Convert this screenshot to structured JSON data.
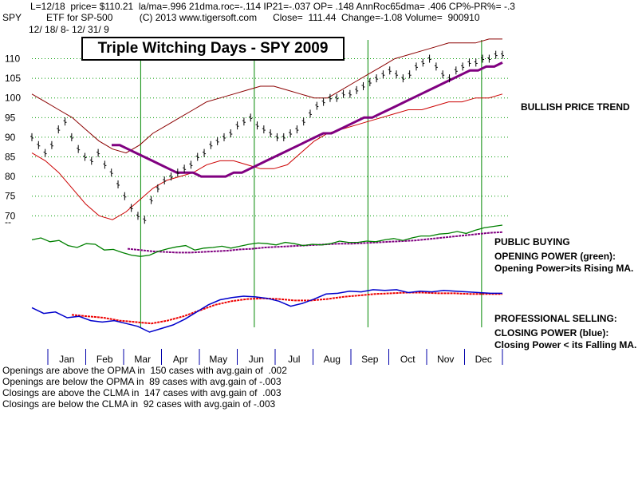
{
  "header": {
    "line1": "L=12/18  price= $110.21  la/ma=.996 21dma.roc=-.114 IP21=-.037 OP= .148 AnnRoc65dma= .406 CP%-PR%= -.3",
    "symbol": "SPY",
    "line2": "ETF for SP-500          (C) 2013 www.tigersoft.com      Close=  111.44  Change=-1.08 Volume=  900910",
    "date_range": "12/ 18/ 8- 12/ 31/ 9",
    "y_extra": "--"
  },
  "chart_data": {
    "type": "line",
    "title": "Triple Witching Days - SPY 2009",
    "ylim": [
      66,
      116
    ],
    "y_ticks": [
      70,
      75,
      80,
      85,
      90,
      95,
      100,
      105,
      110
    ],
    "x_labels": [
      "Jan",
      "Feb",
      "Mar",
      "Apr",
      "May",
      "Jun",
      "Jul",
      "Aug",
      "Sep",
      "Oct",
      "Nov",
      "Dec"
    ],
    "triple_witching_months": [
      "Mar",
      "Jun",
      "Sep",
      "Dec"
    ],
    "price": [
      90,
      88,
      86,
      88,
      92,
      94,
      90,
      87,
      85,
      84,
      86,
      83,
      81,
      78,
      75,
      72,
      70,
      69,
      74,
      77,
      79,
      80,
      81,
      82,
      83,
      85,
      86,
      88,
      89,
      90,
      91,
      93,
      94,
      95,
      93,
      92,
      91,
      90,
      90,
      91,
      92,
      94,
      96,
      98,
      99,
      100,
      100,
      101,
      101,
      102,
      103,
      104,
      105,
      106,
      107,
      106,
      105,
      106,
      108,
      109,
      110,
      108,
      106,
      105,
      107,
      108,
      109,
      109,
      110,
      110,
      111,
      111
    ],
    "ma": [
      88,
      88,
      87,
      86,
      85,
      84,
      83,
      82,
      81,
      81,
      81,
      80,
      80,
      80,
      80,
      81,
      81,
      82,
      83,
      84,
      85,
      86,
      87,
      88,
      89,
      90,
      91,
      91,
      92,
      93,
      94,
      95,
      95,
      96,
      97,
      98,
      99,
      100,
      101,
      102,
      103,
      104,
      105,
      106,
      107,
      107,
      108,
      108,
      109
    ],
    "upper_band": [
      101,
      99,
      97,
      95,
      92,
      89,
      87,
      86,
      88,
      91,
      93,
      95,
      97,
      99,
      100,
      101,
      102,
      103,
      103,
      102,
      101,
      100,
      100,
      102,
      104,
      106,
      108,
      110,
      111,
      112,
      113,
      114,
      114,
      114,
      115,
      115
    ],
    "lower_band": [
      86,
      84,
      81,
      77,
      73,
      70,
      69,
      71,
      74,
      77,
      79,
      80,
      81,
      83,
      84,
      84,
      83,
      82,
      82,
      83,
      86,
      89,
      91,
      92,
      93,
      94,
      95,
      96,
      97,
      97,
      98,
      99,
      99,
      100,
      100,
      101
    ],
    "opening_power": [
      12,
      15,
      9,
      11,
      3,
      0,
      6,
      5,
      -4,
      -3,
      -8,
      -12,
      -14,
      -12,
      -6,
      -2,
      1,
      3,
      -4,
      -1,
      0,
      2,
      -1,
      2,
      5,
      7,
      6,
      4,
      8,
      6,
      3,
      5,
      4,
      6,
      10,
      8,
      8,
      10,
      9,
      12,
      14,
      11,
      15,
      18,
      18,
      21,
      22,
      25,
      22,
      27,
      31,
      33,
      35
    ],
    "opening_ma": [
      -2,
      -4,
      -6,
      -7,
      -8,
      -8,
      -7,
      -6,
      -5,
      -3,
      -2,
      0,
      1,
      2,
      3,
      4,
      5,
      6,
      6,
      7,
      8,
      9,
      10,
      11,
      13,
      15,
      17,
      19,
      21,
      23,
      24
    ],
    "closing_power": [
      -6,
      -14,
      -12,
      -20,
      -18,
      -24,
      -26,
      -24,
      -28,
      -32,
      -40,
      -35,
      -30,
      -22,
      -12,
      -2,
      5,
      8,
      10,
      9,
      7,
      3,
      -4,
      0,
      6,
      13,
      14,
      17,
      16,
      19,
      18,
      19,
      15,
      17,
      16,
      18,
      17,
      16,
      15,
      14,
      14
    ],
    "closing_ma": [
      -16,
      -18,
      -20,
      -24,
      -26,
      -28,
      -24,
      -18,
      -10,
      -2,
      3,
      6,
      7,
      6,
      4,
      4,
      6,
      9,
      11,
      13,
      14,
      15,
      15,
      14,
      14,
      13,
      13,
      13
    ],
    "annotations": [
      "BULLISH PRICE TREND",
      "PUBLIC BUYING",
      "OPENING POWER (green):",
      "Opening Power>its Rising MA.",
      "PROFESSIONAL SELLING:",
      "CLOSING POWER (blue):",
      "Closing Power < its Falling MA."
    ],
    "colors": {
      "price": "#000000",
      "ma": "#800080",
      "band": "#cc0000",
      "band_outer": "#8b0000",
      "opening": "#008000",
      "closing": "#0000cc",
      "closing_ma": "#ee0000",
      "grid": "#009900",
      "vline": "#008800"
    }
  },
  "stats": [
    "Openings are above the OPMA in  150 cases with avg.gain of  .002",
    "Openings are below the OPMA in  89 cases with avg.gain of -.003",
    "Closings are above the CLMA in  147 cases with avg.gain of  .003",
    "Closings are below the CLMA in  92 cases with avg.gain of -.003"
  ]
}
